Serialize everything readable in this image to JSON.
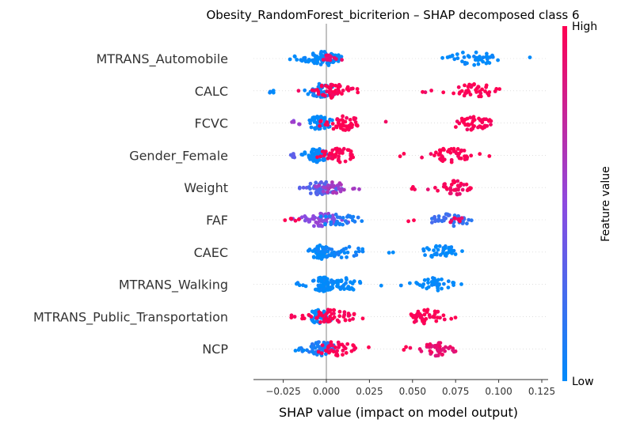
{
  "chart_data": {
    "type": "scatter",
    "title": "Obesity_RandomForest_bicriterion – SHAP decomposed class 6",
    "xlabel": "SHAP value (impact on model output)",
    "ylabel": "",
    "xlim": [
      -0.043,
      0.13
    ],
    "xticks": [
      -0.025,
      0.0,
      0.025,
      0.05,
      0.075,
      0.1,
      0.125
    ],
    "xtick_labels": [
      "−0.025",
      "0.000",
      "0.025",
      "0.050",
      "0.075",
      "0.100",
      "0.125"
    ],
    "colorbar": {
      "label": "Feature value",
      "high": "High",
      "low": "Low",
      "color_low": "#008bfb",
      "color_mid": "#8d4ae0",
      "color_high": "#ff0052"
    },
    "features": [
      {
        "name": "MTRANS_Automobile",
        "groups": [
          {
            "center": -0.001,
            "spread": 0.01,
            "n": 70,
            "feature_value": 0.0
          },
          {
            "center": 0.002,
            "spread": 0.006,
            "n": 14,
            "feature_value": 0.9
          },
          {
            "center": -0.018,
            "spread": 0.006,
            "n": 8,
            "feature_value": 0.0
          },
          {
            "center": 0.085,
            "spread": 0.014,
            "n": 40,
            "feature_value": 0.0
          },
          {
            "center": 0.118,
            "spread": 0.002,
            "n": 1,
            "feature_value": 0.0
          }
        ]
      },
      {
        "name": "CALC",
        "groups": [
          {
            "center": -0.003,
            "spread": 0.008,
            "n": 40,
            "feature_value": 0.05
          },
          {
            "center": 0.003,
            "spread": 0.01,
            "n": 55,
            "feature_value": 1.0
          },
          {
            "center": -0.03,
            "spread": 0.006,
            "n": 4,
            "feature_value": 0.0
          },
          {
            "center": 0.087,
            "spread": 0.012,
            "n": 40,
            "feature_value": 1.0
          },
          {
            "center": 0.058,
            "spread": 0.004,
            "n": 3,
            "feature_value": 0.95
          }
        ]
      },
      {
        "name": "FCVC",
        "groups": [
          {
            "center": -0.004,
            "spread": 0.006,
            "n": 45,
            "feature_value": 0.0
          },
          {
            "center": 0.01,
            "spread": 0.012,
            "n": 45,
            "feature_value": 1.0
          },
          {
            "center": -0.018,
            "spread": 0.004,
            "n": 5,
            "feature_value": 0.55
          },
          {
            "center": 0.085,
            "spread": 0.012,
            "n": 45,
            "feature_value": 1.0
          },
          {
            "center": 0.035,
            "spread": 0.002,
            "n": 1,
            "feature_value": 1.0
          }
        ]
      },
      {
        "name": "Gender_Female",
        "groups": [
          {
            "center": -0.005,
            "spread": 0.006,
            "n": 50,
            "feature_value": 0.0
          },
          {
            "center": 0.007,
            "spread": 0.01,
            "n": 45,
            "feature_value": 1.0
          },
          {
            "center": -0.02,
            "spread": 0.004,
            "n": 5,
            "feature_value": 0.3
          },
          {
            "center": 0.072,
            "spread": 0.013,
            "n": 45,
            "feature_value": 1.0
          },
          {
            "center": 0.044,
            "spread": 0.003,
            "n": 2,
            "feature_value": 1.0
          }
        ]
      },
      {
        "name": "Weight",
        "groups": [
          {
            "center": -0.004,
            "spread": 0.01,
            "n": 60,
            "feature_value": 0.3
          },
          {
            "center": 0.005,
            "spread": 0.012,
            "n": 30,
            "feature_value": 0.6
          },
          {
            "center": 0.075,
            "spread": 0.01,
            "n": 40,
            "feature_value": 0.95
          },
          {
            "center": 0.05,
            "spread": 0.002,
            "n": 3,
            "feature_value": 1.0
          }
        ]
      },
      {
        "name": "FAF",
        "groups": [
          {
            "center": -0.003,
            "spread": 0.012,
            "n": 60,
            "feature_value": 0.5
          },
          {
            "center": 0.005,
            "spread": 0.012,
            "n": 30,
            "feature_value": 0.1
          },
          {
            "center": -0.02,
            "spread": 0.004,
            "n": 5,
            "feature_value": 1.0
          },
          {
            "center": 0.072,
            "spread": 0.01,
            "n": 40,
            "feature_value": 0.2
          },
          {
            "center": 0.074,
            "spread": 0.006,
            "n": 8,
            "feature_value": 0.95
          },
          {
            "center": 0.05,
            "spread": 0.002,
            "n": 2,
            "feature_value": 1.0
          }
        ]
      },
      {
        "name": "CAEC",
        "groups": [
          {
            "center": -0.003,
            "spread": 0.006,
            "n": 55,
            "feature_value": 0.0
          },
          {
            "center": 0.01,
            "spread": 0.012,
            "n": 30,
            "feature_value": 0.05
          },
          {
            "center": 0.067,
            "spread": 0.01,
            "n": 40,
            "feature_value": 0.0
          },
          {
            "center": 0.037,
            "spread": 0.002,
            "n": 2,
            "feature_value": 0.0
          }
        ]
      },
      {
        "name": "MTRANS_Walking",
        "groups": [
          {
            "center": -0.002,
            "spread": 0.006,
            "n": 60,
            "feature_value": 0.0
          },
          {
            "center": 0.012,
            "spread": 0.012,
            "n": 35,
            "feature_value": 0.0
          },
          {
            "center": -0.015,
            "spread": 0.003,
            "n": 4,
            "feature_value": 0.0
          },
          {
            "center": 0.064,
            "spread": 0.01,
            "n": 40,
            "feature_value": 0.0
          },
          {
            "center": 0.03,
            "spread": 0.002,
            "n": 1,
            "feature_value": 0.0
          }
        ]
      },
      {
        "name": "MTRANS_Public_Transportation",
        "groups": [
          {
            "center": -0.004,
            "spread": 0.006,
            "n": 40,
            "feature_value": 0.0
          },
          {
            "center": 0.003,
            "spread": 0.012,
            "n": 50,
            "feature_value": 1.0
          },
          {
            "center": -0.017,
            "spread": 0.004,
            "n": 5,
            "feature_value": 1.0
          },
          {
            "center": 0.057,
            "spread": 0.012,
            "n": 45,
            "feature_value": 1.0
          }
        ]
      },
      {
        "name": "NCP",
        "groups": [
          {
            "center": -0.003,
            "spread": 0.008,
            "n": 50,
            "feature_value": 0.1
          },
          {
            "center": 0.005,
            "spread": 0.012,
            "n": 40,
            "feature_value": 1.0
          },
          {
            "center": -0.015,
            "spread": 0.004,
            "n": 4,
            "feature_value": 0.0
          },
          {
            "center": 0.065,
            "spread": 0.008,
            "n": 40,
            "feature_value": 0.9
          },
          {
            "center": 0.047,
            "spread": 0.003,
            "n": 3,
            "feature_value": 1.0
          }
        ]
      }
    ]
  }
}
